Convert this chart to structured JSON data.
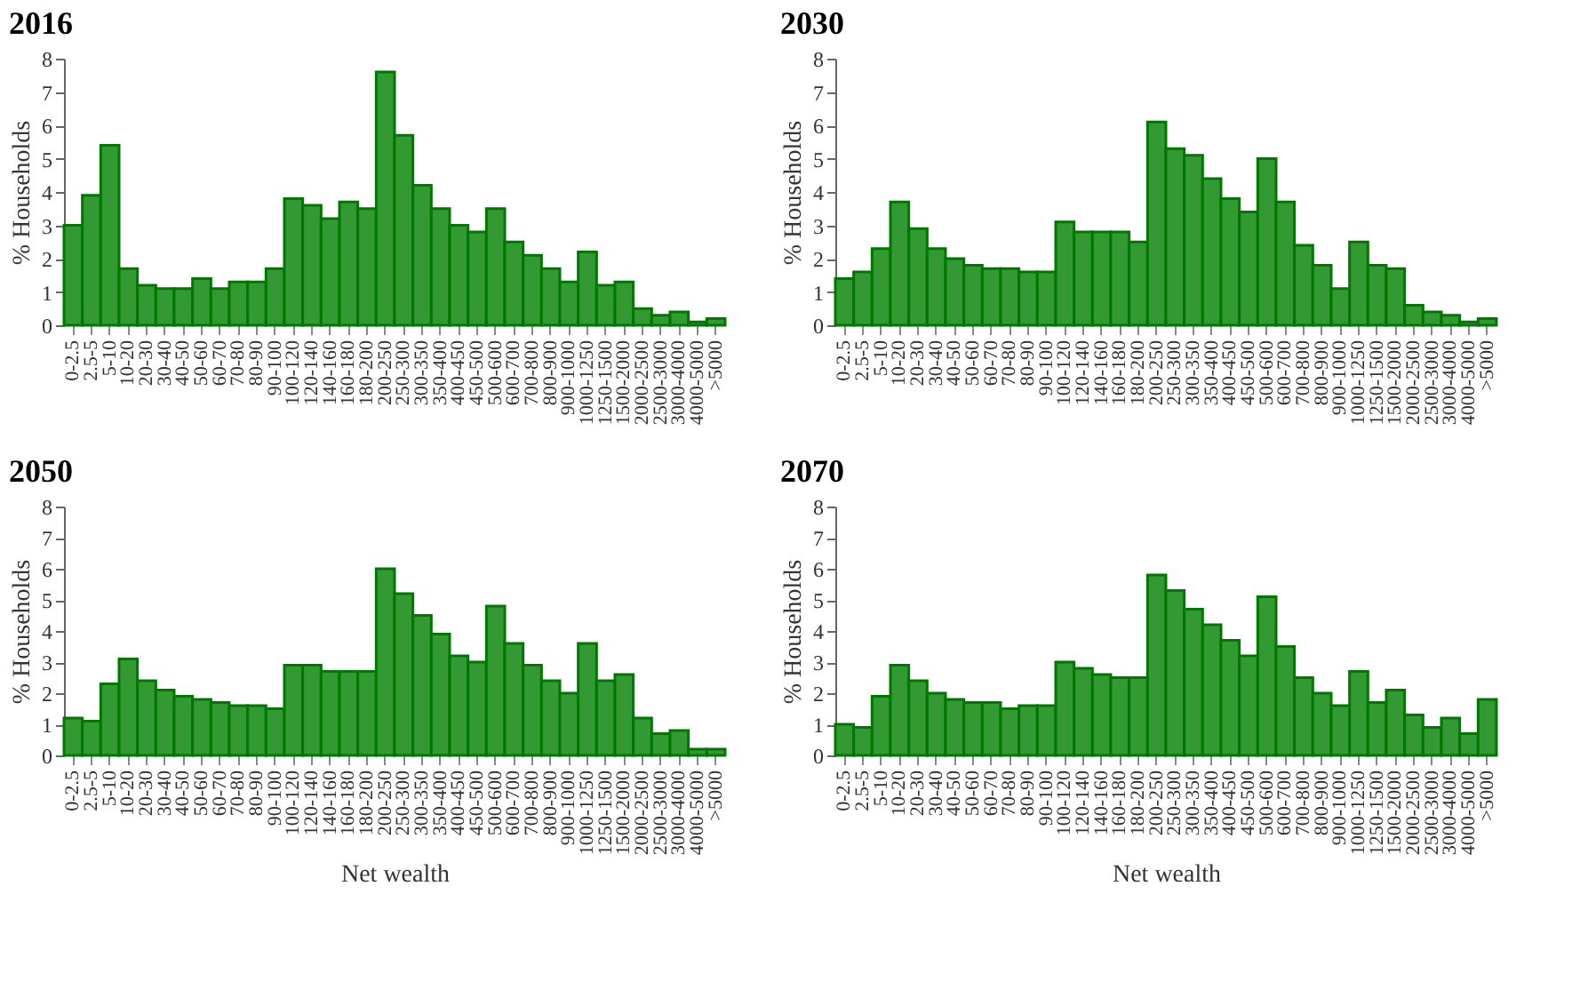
{
  "chart_data": [
    {
      "type": "bar",
      "title": "2016",
      "ylabel": "% Households",
      "categories": [
        "0-2.5",
        "2.5-5",
        "5-10",
        "10-20",
        "20-30",
        "30-40",
        "40-50",
        "50-60",
        "60-70",
        "70-80",
        "80-90",
        "90-100",
        "100-120",
        "120-140",
        "140-160",
        "160-180",
        "180-200",
        "200-250",
        "250-300",
        "300-350",
        "350-400",
        "400-450",
        "450-500",
        "500-600",
        "600-700",
        "700-800",
        "800-900",
        "900-1000",
        "1000-1250",
        "1250-1500",
        "1500-2000",
        "2000-2500",
        "2500-3000",
        "3000-4000",
        "4000-5000",
        ">5000"
      ],
      "values": [
        3.0,
        3.9,
        5.4,
        1.7,
        1.2,
        1.1,
        1.1,
        1.4,
        1.1,
        1.3,
        1.3,
        1.7,
        3.8,
        3.6,
        3.2,
        3.7,
        3.5,
        7.6,
        5.7,
        4.2,
        3.5,
        3.0,
        2.8,
        3.5,
        2.5,
        2.1,
        1.7,
        1.3,
        2.2,
        1.2,
        1.3,
        0.5,
        0.3,
        0.4,
        0.1,
        0.2
      ],
      "color": "#339933",
      "ylim": [
        0,
        8
      ],
      "yticks": [
        0,
        1,
        2,
        3,
        4,
        5,
        6,
        7,
        8
      ],
      "grid": false
    },
    {
      "type": "bar",
      "title": "2030",
      "ylabel": "% Households",
      "categories": [
        "0-2.5",
        "2.5-5",
        "5-10",
        "10-20",
        "20-30",
        "30-40",
        "40-50",
        "50-60",
        "60-70",
        "70-80",
        "80-90",
        "90-100",
        "100-120",
        "120-140",
        "140-160",
        "160-180",
        "180-200",
        "200-250",
        "250-300",
        "300-350",
        "350-400",
        "400-450",
        "450-500",
        "500-600",
        "600-700",
        "700-800",
        "800-900",
        "900-1000",
        "1000-1250",
        "1250-1500",
        "1500-2000",
        "2000-2500",
        "2500-3000",
        "3000-4000",
        "4000-5000",
        ">5000"
      ],
      "values": [
        1.4,
        1.6,
        2.3,
        3.7,
        2.9,
        2.3,
        2.0,
        1.8,
        1.7,
        1.7,
        1.6,
        1.6,
        3.1,
        2.8,
        2.8,
        2.8,
        2.5,
        6.1,
        5.3,
        5.1,
        4.4,
        3.8,
        3.4,
        5.0,
        3.7,
        2.4,
        1.8,
        1.1,
        2.5,
        1.8,
        1.7,
        0.6,
        0.4,
        0.3,
        0.1,
        0.2
      ],
      "color": "#339933",
      "ylim": [
        0,
        8
      ],
      "yticks": [
        0,
        1,
        2,
        3,
        4,
        5,
        6,
        7,
        8
      ],
      "grid": false
    },
    {
      "type": "bar",
      "title": "2050",
      "ylabel": "% Households",
      "xlabel": "Net wealth",
      "categories": [
        "0-2.5",
        "2.5-5",
        "5-10",
        "10-20",
        "20-30",
        "30-40",
        "40-50",
        "50-60",
        "60-70",
        "70-80",
        "80-90",
        "90-100",
        "100-120",
        "120-140",
        "140-160",
        "160-180",
        "180-200",
        "200-250",
        "250-300",
        "300-350",
        "350-400",
        "400-450",
        "450-500",
        "500-600",
        "600-700",
        "700-800",
        "800-900",
        "900-1000",
        "1000-1250",
        "1250-1500",
        "1500-2000",
        "2000-2500",
        "2500-3000",
        "3000-4000",
        "4000-5000",
        ">5000"
      ],
      "values": [
        1.2,
        1.1,
        2.3,
        3.1,
        2.4,
        2.1,
        1.9,
        1.8,
        1.7,
        1.6,
        1.6,
        1.5,
        2.9,
        2.9,
        2.7,
        2.7,
        2.7,
        6.0,
        5.2,
        4.5,
        3.9,
        3.2,
        3.0,
        4.8,
        3.6,
        2.9,
        2.4,
        2.0,
        3.6,
        2.4,
        2.6,
        1.2,
        0.7,
        0.8,
        0.2,
        0.2
      ],
      "color": "#339933",
      "ylim": [
        0,
        8
      ],
      "yticks": [
        0,
        1,
        2,
        3,
        4,
        5,
        6,
        7,
        8
      ],
      "grid": false
    },
    {
      "type": "bar",
      "title": "2070",
      "ylabel": "% Households",
      "xlabel": "Net wealth",
      "categories": [
        "0-2.5",
        "2.5-5",
        "5-10",
        "10-20",
        "20-30",
        "30-40",
        "40-50",
        "50-60",
        "60-70",
        "70-80",
        "80-90",
        "90-100",
        "100-120",
        "120-140",
        "140-160",
        "160-180",
        "180-200",
        "200-250",
        "250-300",
        "300-350",
        "350-400",
        "400-450",
        "450-500",
        "500-600",
        "600-700",
        "700-800",
        "800-900",
        "900-1000",
        "1000-1250",
        "1250-1500",
        "1500-2000",
        "2000-2500",
        "2500-3000",
        "3000-4000",
        "4000-5000",
        ">5000"
      ],
      "values": [
        1.0,
        0.9,
        1.9,
        2.9,
        2.4,
        2.0,
        1.8,
        1.7,
        1.7,
        1.5,
        1.6,
        1.6,
        3.0,
        2.8,
        2.6,
        2.5,
        2.5,
        5.8,
        5.3,
        4.7,
        4.2,
        3.7,
        3.2,
        5.1,
        3.5,
        2.5,
        2.0,
        1.6,
        2.7,
        1.7,
        2.1,
        1.3,
        0.9,
        1.2,
        0.7,
        1.8
      ],
      "color": "#339933",
      "ylim": [
        0,
        8
      ],
      "yticks": [
        0,
        1,
        2,
        3,
        4,
        5,
        6,
        7,
        8
      ],
      "grid": false
    }
  ]
}
